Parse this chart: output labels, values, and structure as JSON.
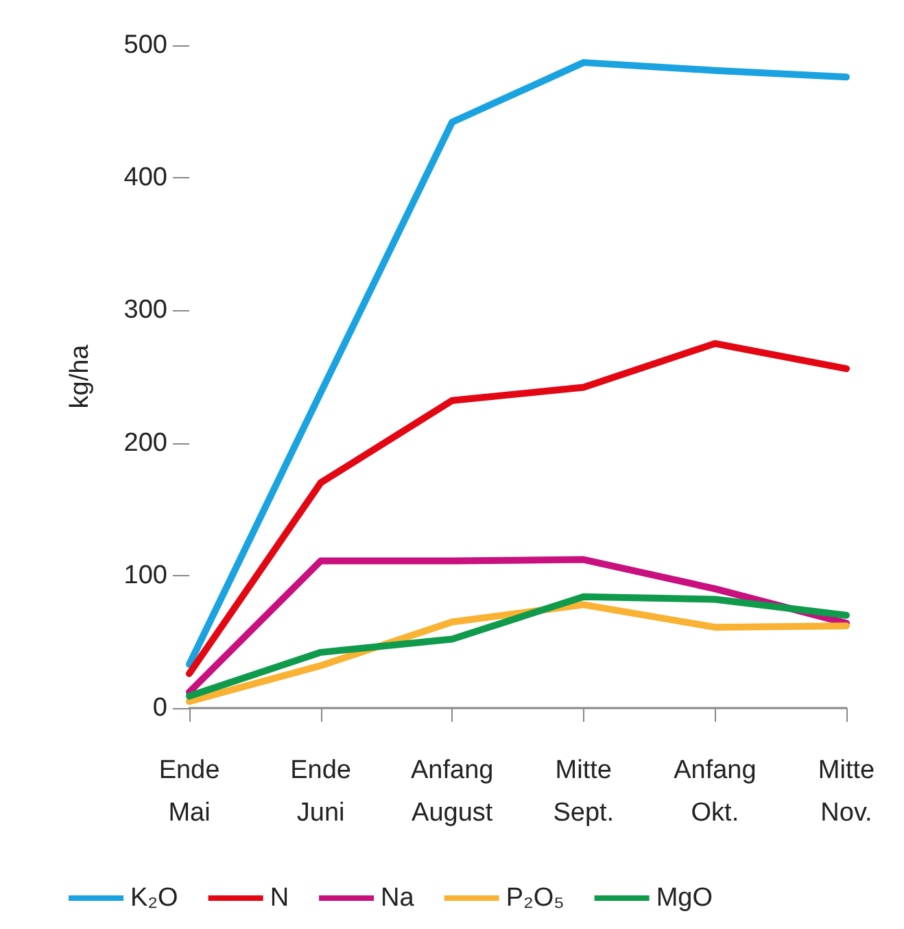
{
  "chart_data": {
    "type": "line",
    "ylabel": "kg/ha",
    "categories": [
      "Ende\nMai",
      "Ende\nJuni",
      "Anfang\nAugust",
      "Mitte\nSept.",
      "Anfang\nOkt.",
      "Mitte\nNov."
    ],
    "series": [
      {
        "name": "K₂O",
        "color": "#1aa3e0",
        "values": [
          33,
          238,
          442,
          487,
          481,
          476
        ]
      },
      {
        "name": "N",
        "color": "#e30613",
        "values": [
          26,
          170,
          232,
          242,
          275,
          256
        ]
      },
      {
        "name": "Na",
        "color": "#c8107f",
        "values": [
          12,
          111,
          111,
          112,
          90,
          64
        ]
      },
      {
        "name": "P₂O₅",
        "color": "#f9b233",
        "values": [
          5,
          32,
          65,
          78,
          61,
          62
        ]
      },
      {
        "name": "MgO",
        "color": "#0f9a4c",
        "values": [
          9,
          42,
          52,
          84,
          82,
          70
        ]
      }
    ],
    "ylim": [
      0,
      500
    ],
    "yticks": [
      0,
      100,
      200,
      300,
      400,
      500
    ],
    "grid": false,
    "legend": "bottom left",
    "marker": "none",
    "line_style": "solid"
  }
}
